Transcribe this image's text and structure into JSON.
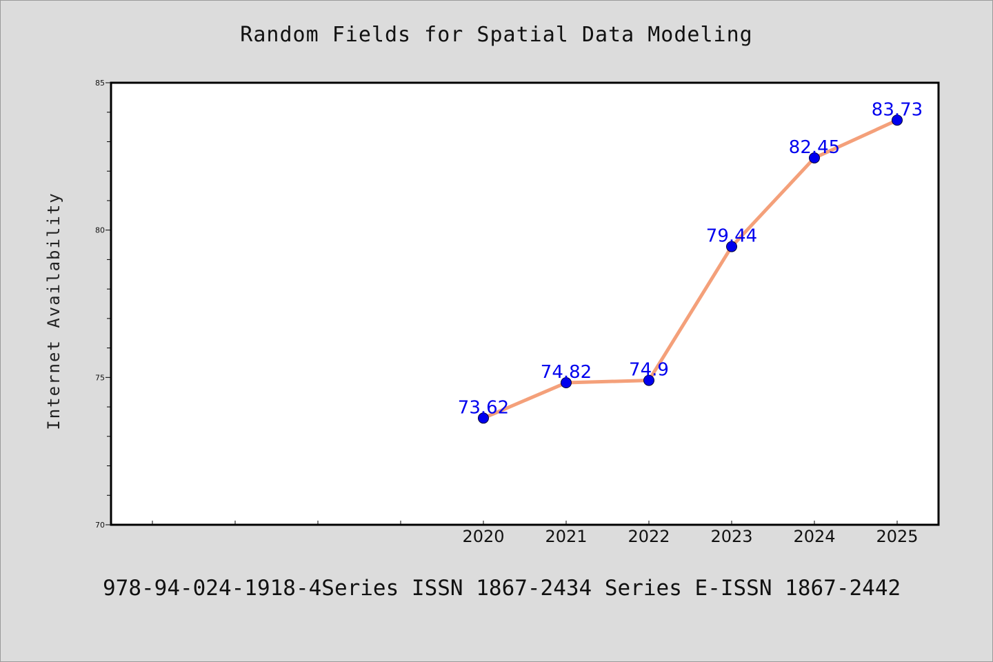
{
  "chart_data": {
    "type": "line",
    "title": "Random Fields for Spatial Data Modeling",
    "ylabel": "Internet Availability",
    "xlabel": "",
    "x": [
      2020,
      2021,
      2022,
      2023,
      2024,
      2025
    ],
    "x_tick_labels": [
      "2020",
      "2021",
      "2022",
      "2023",
      "2024",
      "2025"
    ],
    "series": [
      {
        "values": [
          73.62,
          74.82,
          74.9,
          79.44,
          82.45,
          83.73
        ],
        "data_labels": [
          "73.62",
          "74.82",
          "74.9",
          "79.44",
          "82.45",
          "83.73"
        ],
        "line_color": "#f4a07a",
        "marker_color": "#0000ee",
        "label_color": "#0000ee"
      }
    ],
    "xlim": [
      2015.5,
      2025.5
    ],
    "ylim": [
      70,
      85
    ],
    "y_major_ticks": [
      70,
      75,
      80,
      85
    ],
    "y_tick_labels": [
      "70",
      "75",
      "80",
      "85"
    ],
    "grid": false,
    "legend": "none"
  },
  "footer": {
    "text": "978-94-024-1918-4Series ISSN 1867-2434 Series E-ISSN 1867-2442"
  },
  "colors": {
    "background": "#dcdcdc",
    "plot_area": "#ffffff"
  }
}
